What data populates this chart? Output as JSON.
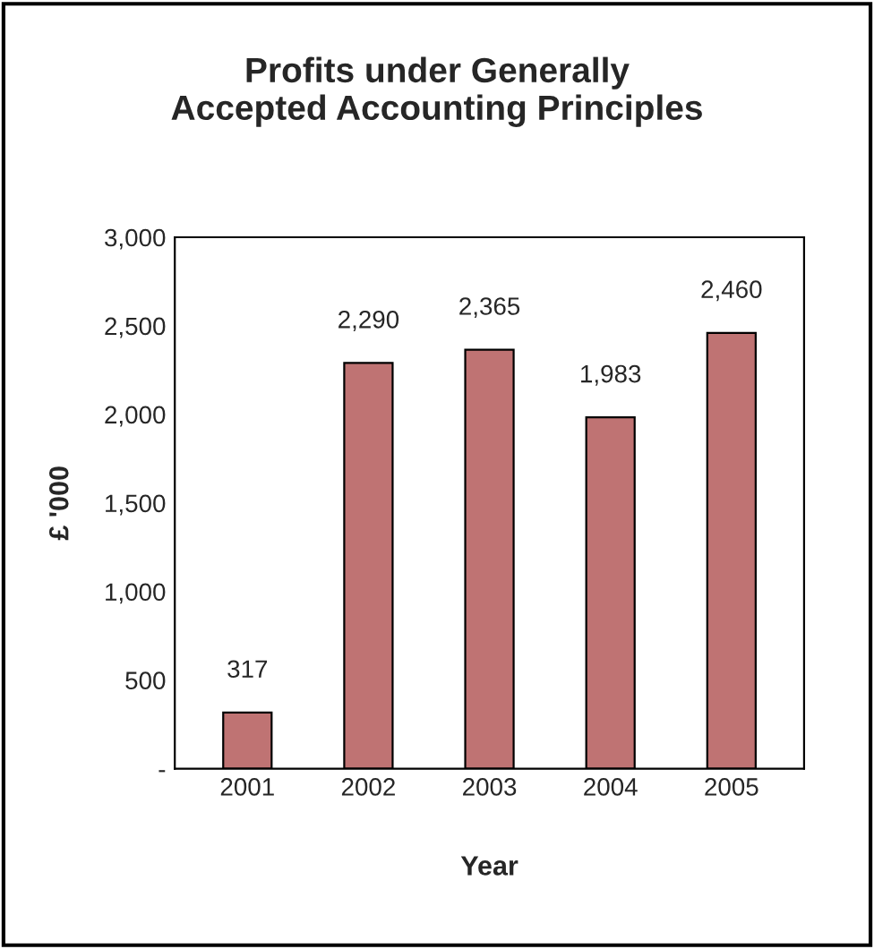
{
  "chart_data": {
    "type": "bar",
    "title": "Profits under Generally\nAccepted Accounting Principles",
    "xlabel": "Year",
    "ylabel": "£ '000",
    "categories": [
      "2001",
      "2002",
      "2003",
      "2004",
      "2005"
    ],
    "values": [
      317,
      2290,
      2365,
      1983,
      2460
    ],
    "value_labels": [
      "317",
      "2,290",
      "2,365",
      "1,983",
      "2,460"
    ],
    "color": "#cc6666",
    "ylim": [
      0,
      3000
    ],
    "yticks": [
      {
        "value": 0,
        "label": "-"
      },
      {
        "value": 500,
        "label": "500"
      },
      {
        "value": 1000,
        "label": "1,000"
      },
      {
        "value": 1500,
        "label": "1,500"
      },
      {
        "value": 2000,
        "label": "2,000"
      },
      {
        "value": 2500,
        "label": "2,500"
      },
      {
        "value": 3000,
        "label": "3,000"
      }
    ],
    "grid": false,
    "legend": false
  }
}
